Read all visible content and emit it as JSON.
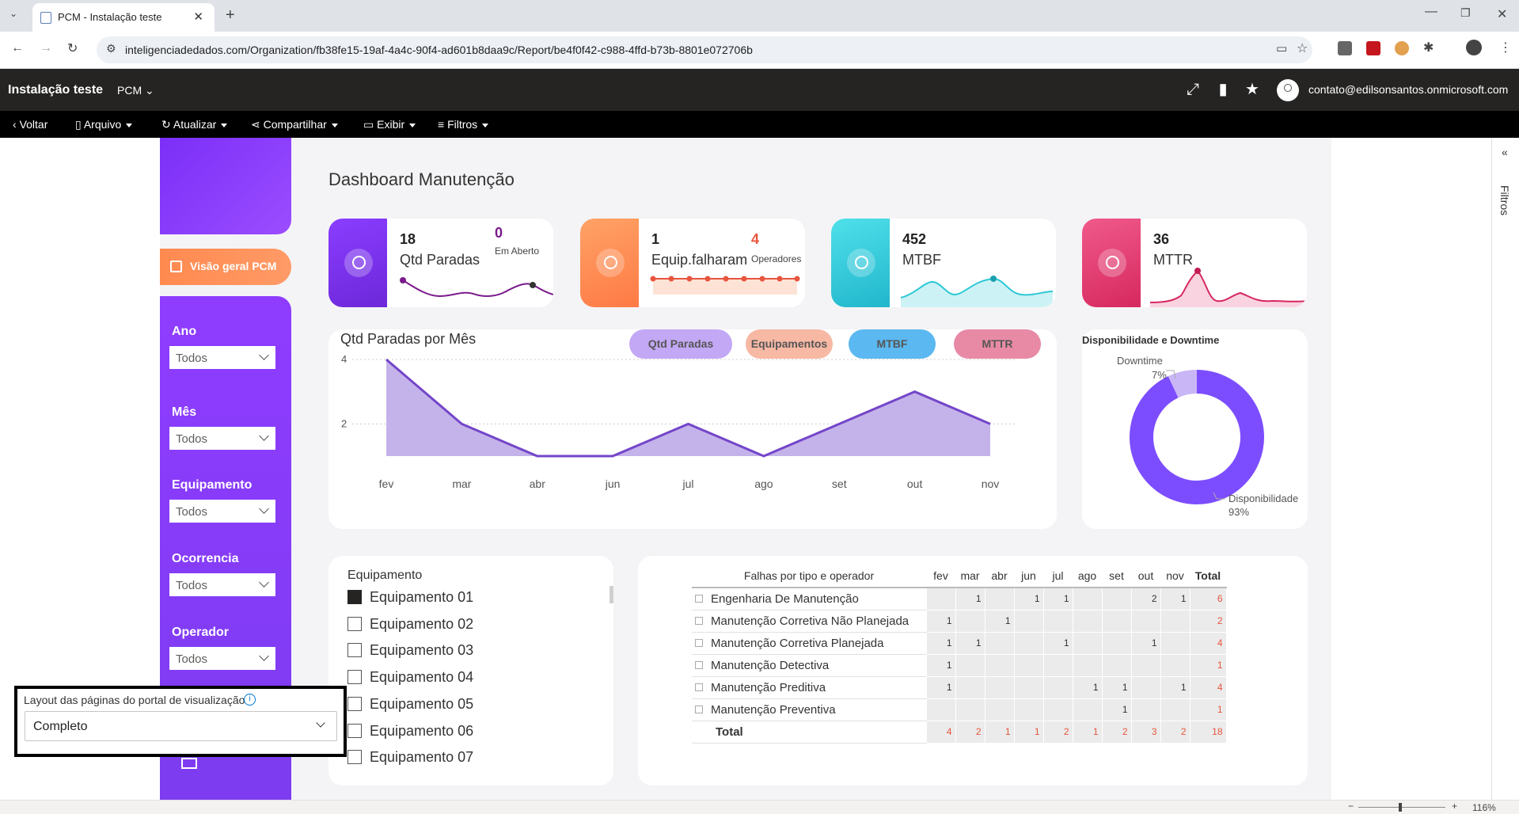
{
  "browser": {
    "tab_title": "PCM - Instalação teste",
    "url": "inteligenciadedados.com/Organization/fb38fe15-19af-4a4c-90f4-ad601b8daa9c/Report/be4f0f42-c988-4ffd-b73b-8801e072706b"
  },
  "header": {
    "workspace": "Instalação teste",
    "report": "PCM",
    "user": "contato@edilsonsantos.onmicrosoft.com"
  },
  "actionbar": {
    "back": "Voltar",
    "file": "Arquivo",
    "refresh": "Atualizar",
    "share": "Compartilhar",
    "view": "Exibir",
    "filters": "Filtros"
  },
  "sidebar": {
    "nav_label": "Visão geral PCM",
    "filters": [
      {
        "label": "Ano",
        "value": "Todos"
      },
      {
        "label": "Mês",
        "value": "Todos"
      },
      {
        "label": "Equipamento",
        "value": "Todos"
      },
      {
        "label": "Ocorrencia",
        "value": "Todos"
      },
      {
        "label": "Operador",
        "value": "Todos"
      }
    ]
  },
  "dashboard_title": "Dashboard Manutenção",
  "kpis": {
    "paradas": {
      "value": "18",
      "label": "Qtd Paradas",
      "value2": "0",
      "sub": "Em Aberto",
      "color": "#7b2ff7"
    },
    "equip": {
      "value": "1",
      "label": "Equip.falharam",
      "value2": "4",
      "sub": "Operadores",
      "color": "#ff8a50"
    },
    "mtbf": {
      "value": "452",
      "label": "MTBF",
      "color": "#2ec8d6"
    },
    "mttr": {
      "value": "36",
      "label": "MTTR",
      "color": "#e0356f"
    }
  },
  "chart": {
    "title": "Qtd Paradas por Mês",
    "pills": [
      {
        "label": "Qtd Paradas",
        "color": "#c3a8f5"
      },
      {
        "label": "Equipamentos",
        "color": "#f7b8a4"
      },
      {
        "label": "MTBF",
        "color": "#5bb8f0"
      },
      {
        "label": "MTTR",
        "color": "#e88aa6"
      }
    ]
  },
  "chart_data": [
    {
      "type": "area",
      "title": "Qtd Paradas por Mês",
      "categories": [
        "fev",
        "mar",
        "abr",
        "jun",
        "jul",
        "ago",
        "set",
        "out",
        "nov"
      ],
      "values": [
        4,
        2,
        1,
        1,
        2,
        1,
        2,
        3,
        2
      ],
      "yticks": [
        2,
        4
      ],
      "ylim": [
        1,
        4
      ],
      "grid": true,
      "color": "#7445c9"
    },
    {
      "type": "pie",
      "title": "Disponibilidade e Downtime",
      "slices": [
        {
          "label": "Disponibilidade",
          "value": 93,
          "value_label": "93%",
          "color": "#7c4dff"
        },
        {
          "label": "Downtime",
          "value": 7,
          "value_label": "7%",
          "color": "#c9b6f7"
        }
      ]
    }
  ],
  "equipment": {
    "title": "Equipamento",
    "items": [
      {
        "label": "Equipamento 01",
        "checked": true
      },
      {
        "label": "Equipamento 02",
        "checked": false
      },
      {
        "label": "Equipamento 03",
        "checked": false
      },
      {
        "label": "Equipamento 04",
        "checked": false
      },
      {
        "label": "Equipamento 05",
        "checked": false
      },
      {
        "label": "Equipamento 06",
        "checked": false
      },
      {
        "label": "Equipamento 07",
        "checked": false
      }
    ]
  },
  "matrix": {
    "row_header": "Falhas por tipo e operador",
    "columns": [
      "fev",
      "mar",
      "abr",
      "jun",
      "jul",
      "ago",
      "set",
      "out",
      "nov",
      "Total"
    ],
    "rows": [
      {
        "label": "Engenharia De Manutenção",
        "cells": [
          "",
          "1",
          "",
          "1",
          "1",
          "",
          "",
          "2",
          "1",
          "6"
        ]
      },
      {
        "label": "Manutenção Corretiva Não Planejada",
        "cells": [
          "1",
          "",
          "1",
          "",
          "",
          "",
          "",
          "",
          "",
          "2"
        ]
      },
      {
        "label": "Manutenção Corretiva Planejada",
        "cells": [
          "1",
          "1",
          "",
          "",
          "1",
          "",
          "",
          "1",
          "",
          "4"
        ]
      },
      {
        "label": "Manutenção Detectiva",
        "cells": [
          "1",
          "",
          "",
          "",
          "",
          "",
          "",
          "",
          "",
          "1"
        ]
      },
      {
        "label": "Manutenção Preditiva",
        "cells": [
          "1",
          "",
          "",
          "",
          "",
          "1",
          "1",
          "",
          "1",
          "4"
        ]
      },
      {
        "label": "Manutenção Preventiva",
        "cells": [
          "",
          "",
          "",
          "",
          "",
          "",
          "1",
          "",
          "",
          "1"
        ]
      }
    ],
    "total": {
      "label": "Total",
      "cells": [
        "4",
        "2",
        "1",
        "1",
        "2",
        "1",
        "2",
        "3",
        "2",
        "18"
      ]
    }
  },
  "filters_pane": "Filtros",
  "layout_popup": {
    "title": "Layout das páginas do portal de visualização",
    "value": "Completo"
  },
  "zoom": "116%"
}
